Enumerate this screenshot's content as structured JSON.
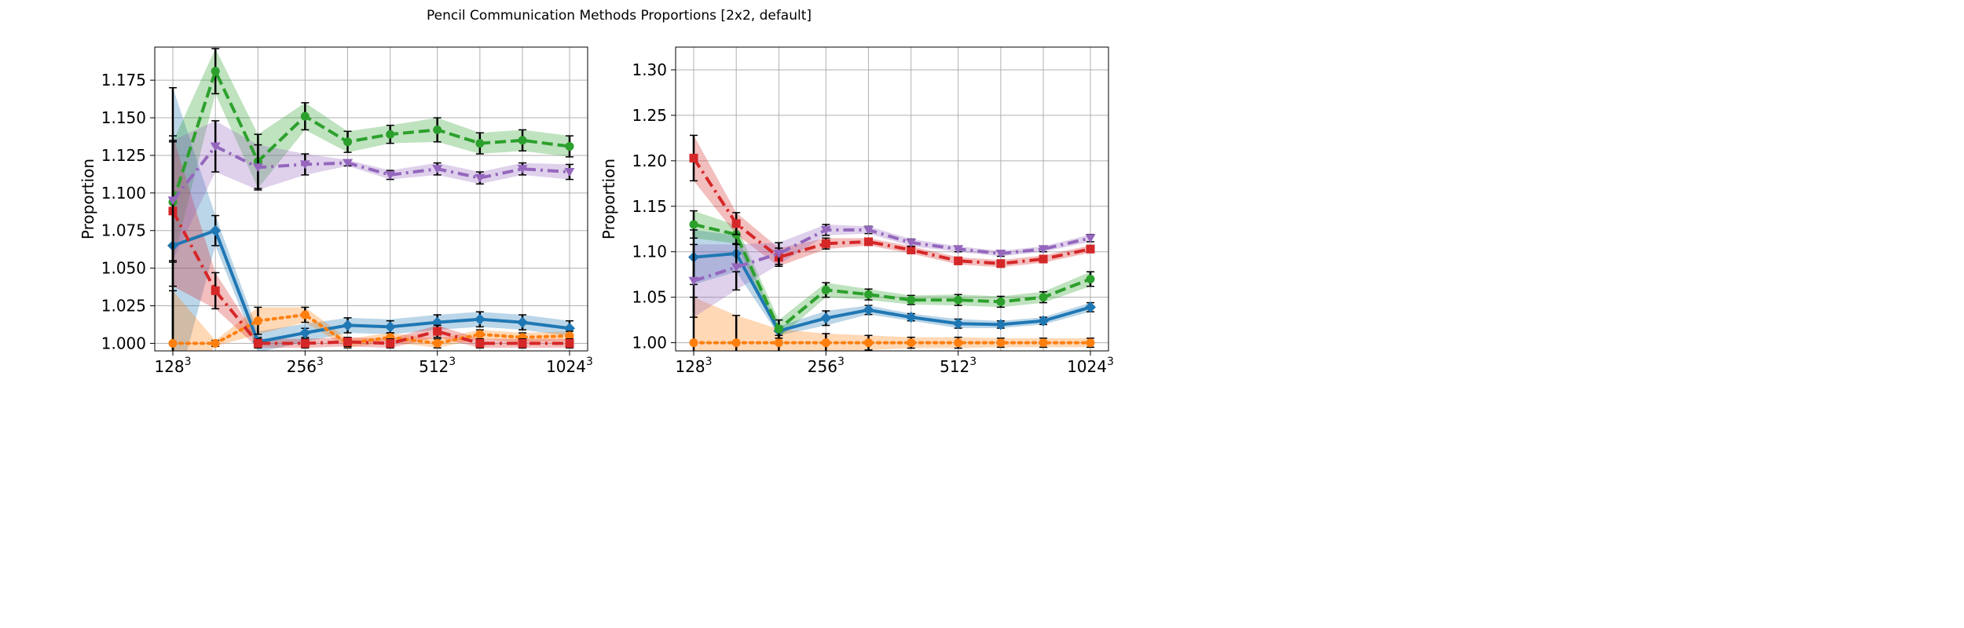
{
  "figure": {
    "title": "Pencil Communication Methods Proportions [2x2, default]"
  },
  "chart_data": [
    {
      "type": "line",
      "title": "",
      "xlabel": "",
      "ylabel": "Proportion",
      "x": [
        128,
        160,
        200,
        256,
        320,
        400,
        512,
        640,
        800,
        1024
      ],
      "x_scale": "log2",
      "xticks": [
        {
          "value": 128,
          "base": "128",
          "exp": "3"
        },
        {
          "value": 256,
          "base": "256",
          "exp": "3"
        },
        {
          "value": 512,
          "base": "512",
          "exp": "3"
        },
        {
          "value": 1024,
          "base": "1024",
          "exp": "3"
        }
      ],
      "yticks": [
        "1.000",
        "1.025",
        "1.050",
        "1.075",
        "1.100",
        "1.125",
        "1.150",
        "1.175"
      ],
      "ylim": [
        0.995,
        1.197
      ],
      "grid": true,
      "series": [
        {
          "color": "#1f77b4",
          "linestyle": "solid",
          "marker": "diamond",
          "values": [
            1.065,
            1.075,
            1.001,
            1.007,
            1.012,
            1.011,
            1.014,
            1.016,
            1.014,
            1.01
          ],
          "band": [
            0.105,
            0.01,
            0.007,
            0.006,
            0.005,
            0.005,
            0.005,
            0.005,
            0.005,
            0.005
          ],
          "err": [
            0.105,
            0.01,
            0.003,
            0.003,
            0.005,
            0.004,
            0.005,
            0.005,
            0.005,
            0.005
          ]
        },
        {
          "color": "#ff7f0e",
          "linestyle": "dotted",
          "marker": "circle",
          "values": [
            1.0,
            1.0,
            1.015,
            1.019,
            1.0,
            1.004,
            1.0,
            1.006,
            1.004,
            1.005
          ],
          "band": [
            0.035,
            0.002,
            0.009,
            0.005,
            0.003,
            0.003,
            0.003,
            0.003,
            0.003,
            0.003
          ],
          "err": [
            0.035,
            0.002,
            0.009,
            0.005,
            0.003,
            0.003,
            0.003,
            0.003,
            0.003,
            0.003
          ]
        },
        {
          "color": "#2ca02c",
          "linestyle": "dashed",
          "marker": "circle",
          "values": [
            1.094,
            1.181,
            1.121,
            1.151,
            1.134,
            1.139,
            1.142,
            1.133,
            1.135,
            1.131
          ],
          "band": [
            0.04,
            0.015,
            0.018,
            0.009,
            0.007,
            0.006,
            0.008,
            0.007,
            0.007,
            0.007
          ],
          "err": [
            0.04,
            0.015,
            0.018,
            0.009,
            0.007,
            0.006,
            0.008,
            0.007,
            0.007,
            0.007
          ]
        },
        {
          "color": "#d62728",
          "linestyle": "dashdot",
          "marker": "square",
          "values": [
            1.088,
            1.035,
            1.0,
            1.0,
            1.001,
            1.0,
            1.008,
            1.0,
            1.0,
            1.0
          ],
          "band": [
            0.05,
            0.012,
            0.003,
            0.003,
            0.003,
            0.003,
            0.004,
            0.003,
            0.003,
            0.003
          ],
          "err": [
            0.05,
            0.012,
            0.003,
            0.003,
            0.003,
            0.003,
            0.004,
            0.003,
            0.003,
            0.003
          ]
        },
        {
          "color": "#9467bd",
          "linestyle": "dashdot",
          "marker": "triangle-down",
          "values": [
            1.095,
            1.131,
            1.117,
            1.119,
            1.12,
            1.112,
            1.116,
            1.11,
            1.116,
            1.114
          ],
          "band": [
            0.04,
            0.017,
            0.015,
            0.007,
            0.002,
            0.003,
            0.004,
            0.004,
            0.004,
            0.005
          ],
          "err": [
            0.04,
            0.017,
            0.015,
            0.007,
            0.002,
            0.003,
            0.004,
            0.004,
            0.004,
            0.005
          ]
        }
      ]
    },
    {
      "type": "line",
      "title": "",
      "xlabel": "",
      "ylabel": "Proportion",
      "x": [
        128,
        160,
        200,
        256,
        320,
        400,
        512,
        640,
        800,
        1024
      ],
      "x_scale": "log2",
      "xticks": [
        {
          "value": 128,
          "base": "128",
          "exp": "3"
        },
        {
          "value": 256,
          "base": "256",
          "exp": "3"
        },
        {
          "value": 512,
          "base": "512",
          "exp": "3"
        },
        {
          "value": 1024,
          "base": "1024",
          "exp": "3"
        }
      ],
      "yticks": [
        "1.00",
        "1.05",
        "1.10",
        "1.15",
        "1.20",
        "1.25",
        "1.30"
      ],
      "ylim": [
        0.991,
        1.325
      ],
      "grid": true,
      "series": [
        {
          "color": "#1f77b4",
          "linestyle": "solid",
          "marker": "diamond",
          "values": [
            1.094,
            1.098,
            1.013,
            1.027,
            1.036,
            1.028,
            1.021,
            1.02,
            1.024,
            1.039
          ],
          "band": [
            0.03,
            0.02,
            0.005,
            0.008,
            0.005,
            0.004,
            0.005,
            0.004,
            0.004,
            0.005
          ],
          "err": [
            0.03,
            0.02,
            0.005,
            0.008,
            0.005,
            0.004,
            0.005,
            0.004,
            0.004,
            0.005
          ]
        },
        {
          "color": "#ff7f0e",
          "linestyle": "dotted",
          "marker": "circle",
          "values": [
            1.0,
            1.0,
            1.0,
            1.0,
            1.0,
            1.0,
            1.0,
            1.0,
            1.0,
            1.0
          ],
          "band": [
            0.05,
            0.03,
            0.015,
            0.01,
            0.008,
            0.006,
            0.006,
            0.005,
            0.005,
            0.005
          ],
          "err": [
            0.05,
            0.03,
            0.015,
            0.01,
            0.008,
            0.006,
            0.006,
            0.005,
            0.005,
            0.005
          ]
        },
        {
          "color": "#2ca02c",
          "linestyle": "dashed",
          "marker": "circle",
          "values": [
            1.13,
            1.119,
            1.015,
            1.058,
            1.053,
            1.047,
            1.047,
            1.045,
            1.05,
            1.07
          ],
          "band": [
            0.015,
            0.01,
            0.01,
            0.008,
            0.006,
            0.005,
            0.006,
            0.006,
            0.006,
            0.008
          ],
          "err": [
            0.015,
            0.01,
            0.01,
            0.008,
            0.006,
            0.005,
            0.006,
            0.006,
            0.006,
            0.008
          ]
        },
        {
          "color": "#d62728",
          "linestyle": "dashdot",
          "marker": "square",
          "values": [
            1.203,
            1.131,
            1.094,
            1.109,
            1.111,
            1.102,
            1.09,
            1.087,
            1.092,
            1.103
          ],
          "band": [
            0.025,
            0.012,
            0.01,
            0.006,
            0.004,
            0.004,
            0.004,
            0.004,
            0.004,
            0.004
          ],
          "err": [
            0.025,
            0.012,
            0.01,
            0.006,
            0.004,
            0.004,
            0.004,
            0.004,
            0.004,
            0.004
          ]
        },
        {
          "color": "#9467bd",
          "linestyle": "dashdot",
          "marker": "triangle-down",
          "values": [
            1.068,
            1.083,
            1.098,
            1.124,
            1.124,
            1.11,
            1.103,
            1.098,
            1.103,
            1.115
          ],
          "band": [
            0.04,
            0.025,
            0.012,
            0.006,
            0.004,
            0.004,
            0.003,
            0.003,
            0.003,
            0.004
          ],
          "err": [
            0.04,
            0.025,
            0.012,
            0.006,
            0.004,
            0.004,
            0.003,
            0.003,
            0.003,
            0.004
          ]
        }
      ]
    }
  ]
}
